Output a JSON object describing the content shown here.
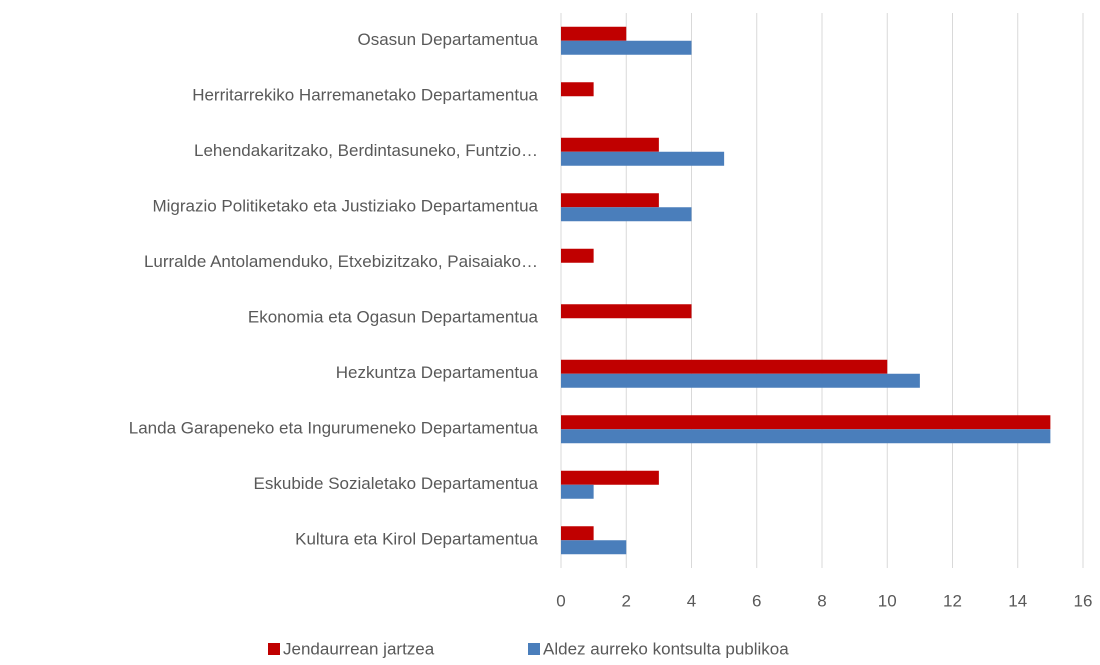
{
  "chart_data": {
    "type": "hbar",
    "categories": [
      "Osasun Departamentua",
      "Herritarrekiko Harremanetako Departamentua",
      "Lehendakaritzako, Berdintasuneko, Funtzio…",
      "Migrazio Politiketako eta Justiziako Departamentua",
      "Lurralde Antolamenduko, Etxebizitzako, Paisaiako…",
      "Ekonomia eta Ogasun Departamentua",
      "Hezkuntza Departamentua",
      "Landa Garapeneko eta Ingurumeneko Departamentua",
      "Eskubide Sozialetako Departamentua",
      "Kultura eta Kirol Departamentua"
    ],
    "series": [
      {
        "name": "Jendaurrean jartzea",
        "color": "#c00000",
        "values": [
          2,
          1,
          3,
          3,
          1,
          4,
          10,
          15,
          3,
          1
        ]
      },
      {
        "name": "Aldez aurreko kontsulta publikoa",
        "color": "#4a7ebb",
        "values": [
          4,
          0,
          5,
          4,
          0,
          0,
          11,
          15,
          1,
          2
        ]
      }
    ],
    "xlim": [
      0,
      16
    ],
    "xticks": [
      0,
      2,
      4,
      6,
      8,
      10,
      12,
      14,
      16
    ],
    "grid": true,
    "legend": "bottom"
  }
}
